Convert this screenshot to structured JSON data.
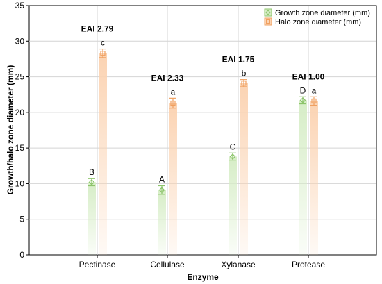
{
  "chart_data": {
    "type": "bar",
    "title": "",
    "xlabel": "Enzyme",
    "ylabel": "Growth/halo zone diameter (mm)",
    "ylim": [
      0,
      35
    ],
    "yticks": [
      "0",
      "5",
      "10",
      "15",
      "20",
      "25",
      "30",
      "35"
    ],
    "grid": true,
    "legend_position": "top-right",
    "categories": [
      "Pectinase",
      "Cellulase",
      "Xylanase",
      "Protease"
    ],
    "series": [
      {
        "name": "Growth zone diameter (mm)",
        "color": "#8cc46a",
        "fill_color": "#d6edc6",
        "values": [
          10.2,
          9.1,
          13.8,
          21.7
        ],
        "errors": [
          0.5,
          0.6,
          0.5,
          0.5
        ],
        "letters": [
          "B",
          "A",
          "C",
          "D"
        ]
      },
      {
        "name": "Halo zone diameter (mm)",
        "color": "#f0a060",
        "fill_color": "#fbd3b2",
        "values": [
          28.3,
          21.3,
          24.1,
          21.6
        ],
        "errors": [
          0.6,
          0.7,
          0.5,
          0.6
        ],
        "letters": [
          "c",
          "a",
          "b",
          "a"
        ]
      }
    ],
    "annotations": [
      "EAI 2.79",
      "EAI 2.33",
      "EAI 1.75",
      "EAI 1.00"
    ]
  }
}
